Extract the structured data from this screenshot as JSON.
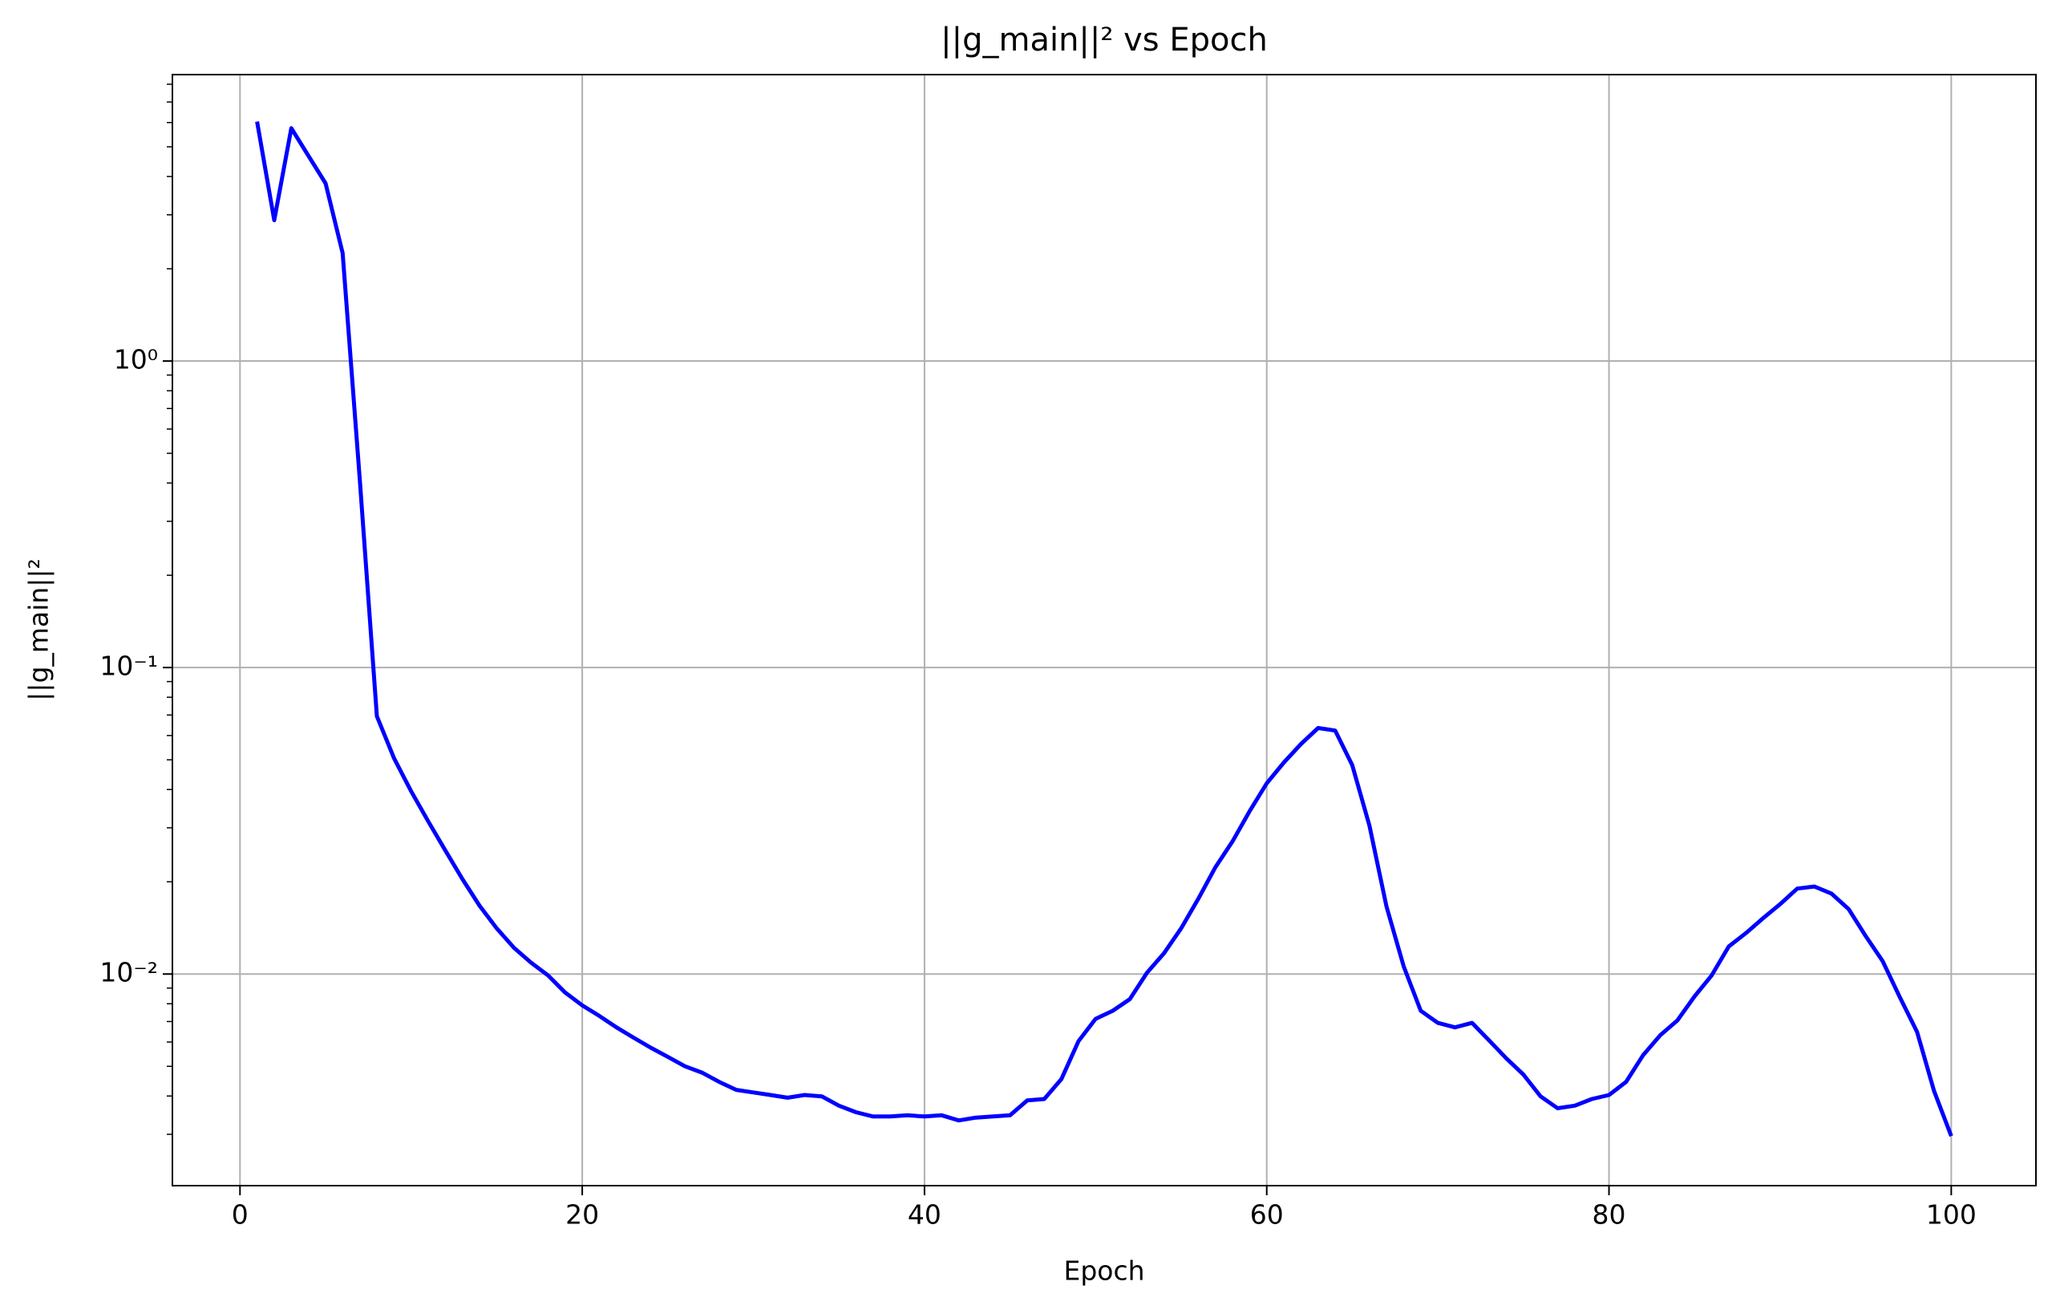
{
  "chart_data": {
    "type": "line",
    "title": "||g_main||² vs Epoch",
    "x_label": "Epoch",
    "y_label": "||g_main||²",
    "x": [
      1,
      2,
      3,
      4,
      5,
      6,
      7,
      8,
      9,
      10,
      11,
      12,
      13,
      14,
      15,
      16,
      17,
      18,
      19,
      20,
      21,
      22,
      23,
      24,
      25,
      26,
      27,
      28,
      29,
      30,
      31,
      32,
      33,
      34,
      35,
      36,
      37,
      38,
      39,
      40,
      41,
      42,
      43,
      44,
      45,
      46,
      47,
      48,
      49,
      50,
      51,
      52,
      53,
      54,
      55,
      56,
      57,
      58,
      59,
      60,
      61,
      62,
      63,
      64,
      65,
      66,
      67,
      68,
      69,
      70,
      71,
      72,
      73,
      74,
      75,
      76,
      77,
      78,
      79,
      80,
      81,
      82,
      83,
      84,
      85,
      86,
      87,
      88,
      89,
      90,
      91,
      92,
      93,
      94,
      95,
      96,
      97,
      98,
      99,
      100
    ],
    "series": [
      {
        "name": "||g_main||²",
        "color": "#0000ff",
        "values": [
          6.04,
          2.88,
          5.75,
          4.67,
          3.8,
          2.25,
          0.41,
          0.0694,
          0.0506,
          0.0395,
          0.0315,
          0.0253,
          0.0204,
          0.0167,
          0.0141,
          0.0122,
          0.0109,
          0.0099,
          0.0087,
          0.0079,
          0.0073,
          0.0067,
          0.0062,
          0.00575,
          0.00537,
          0.005,
          0.00477,
          0.00445,
          0.00419,
          0.00411,
          0.00403,
          0.00395,
          0.00403,
          0.00399,
          0.00372,
          0.00354,
          0.00343,
          0.00343,
          0.00346,
          0.00343,
          0.00346,
          0.00333,
          0.0034,
          0.00343,
          0.00346,
          0.00387,
          0.00391,
          0.00454,
          0.00604,
          0.00714,
          0.00759,
          0.00828,
          0.0101,
          0.0117,
          0.0141,
          0.0176,
          0.0223,
          0.0271,
          0.034,
          0.0419,
          0.049,
          0.0563,
          0.0635,
          0.0623,
          0.048,
          0.0305,
          0.0166,
          0.0106,
          0.00759,
          0.00693,
          0.0067,
          0.00693,
          0.00607,
          0.00531,
          0.0047,
          0.00399,
          0.00365,
          0.00372,
          0.00391,
          0.00403,
          0.00445,
          0.00544,
          0.00632,
          0.00706,
          0.00846,
          0.0099,
          0.0123,
          0.0136,
          0.0152,
          0.0169,
          0.019,
          0.0193,
          0.0183,
          0.0163,
          0.0133,
          0.011,
          0.0084,
          0.00648,
          0.00415,
          0.00296
        ]
      }
    ],
    "xlim": [
      -3.95,
      104.95
    ],
    "xticks": [
      0,
      20,
      40,
      60,
      80,
      100
    ],
    "ylim": [
      0.00204,
      8.6
    ],
    "ylog": true,
    "yticks": [
      {
        "value": 0.01,
        "label": "10⁻²"
      },
      {
        "value": 0.1,
        "label": "10⁻¹"
      },
      {
        "value": 1,
        "label": "10⁰"
      }
    ],
    "yminorticks": [
      0.003,
      0.004,
      0.005,
      0.006,
      0.007,
      0.008,
      0.009,
      0.02,
      0.03,
      0.04,
      0.05,
      0.06,
      0.07,
      0.08,
      0.09,
      0.2,
      0.3,
      0.4,
      0.5,
      0.6,
      0.7,
      0.8,
      0.9,
      2,
      3,
      4,
      5,
      6,
      7,
      8
    ],
    "grid": true
  }
}
